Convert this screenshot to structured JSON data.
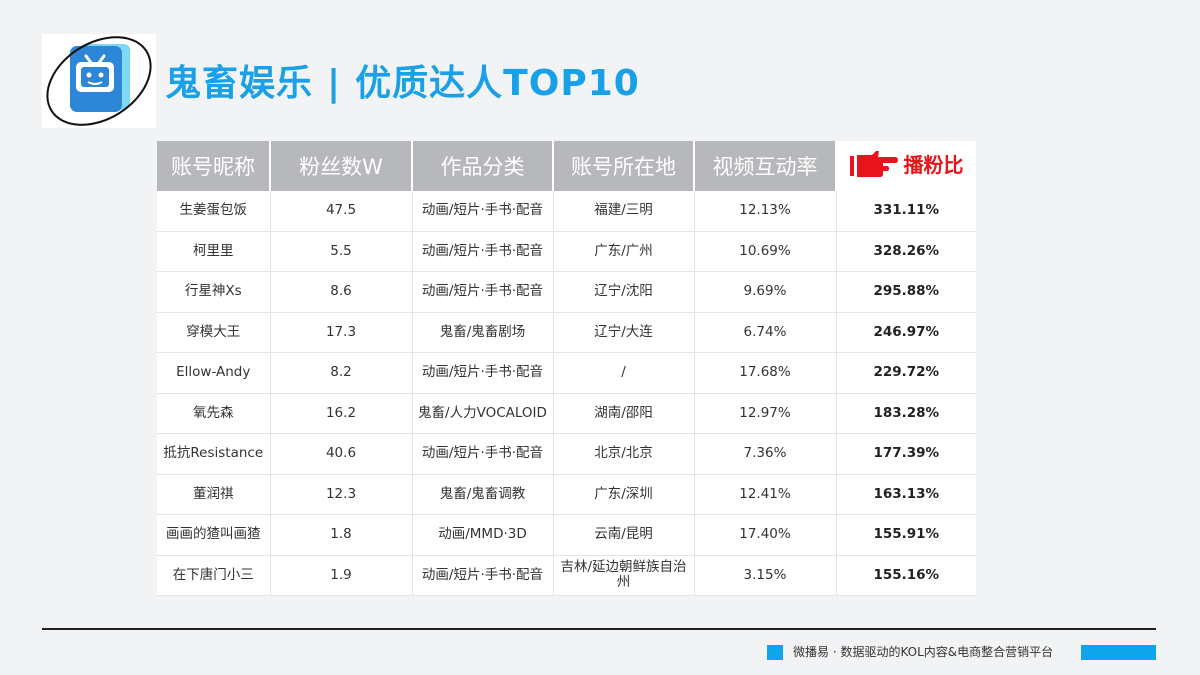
{
  "header": {
    "title_main": "鬼畜娱乐",
    "title_sep": "|",
    "title_sub": "优质达人TOP10"
  },
  "colors": {
    "accent": "#1aa0e6",
    "header_gray": "#b7b8bb",
    "highlight_red": "#e8141b"
  },
  "table": {
    "columns": [
      "账号昵称",
      "粉丝数W",
      "作品分类",
      "账号所在地",
      "视频互动率",
      "播粉比"
    ],
    "rows": [
      [
        "生姜蛋包饭",
        "47.5",
        "动画/短片·手书·配音",
        "福建/三明",
        "12.13%",
        "331.11%"
      ],
      [
        "柯里里",
        "5.5",
        "动画/短片·手书·配音",
        "广东/广州",
        "10.69%",
        "328.26%"
      ],
      [
        "行星神Xs",
        "8.6",
        "动画/短片·手书·配音",
        "辽宁/沈阳",
        "9.69%",
        "295.88%"
      ],
      [
        "穿模大王",
        "17.3",
        "鬼畜/鬼畜剧场",
        "辽宁/大连",
        "6.74%",
        "246.97%"
      ],
      [
        "Ellow-Andy",
        "8.2",
        "动画/短片·手书·配音",
        "/",
        "17.68%",
        "229.72%"
      ],
      [
        "氧先森",
        "16.2",
        "鬼畜/人力VOCALOID",
        "湖南/邵阳",
        "12.97%",
        "183.28%"
      ],
      [
        "抵抗Resistance",
        "40.6",
        "动画/短片·手书·配音",
        "北京/北京",
        "7.36%",
        "177.39%"
      ],
      [
        "董润祺",
        "12.3",
        "鬼畜/鬼畜调教",
        "广东/深圳",
        "12.41%",
        "163.13%"
      ],
      [
        "画画的猹叫画猹",
        "1.8",
        "动画/MMD·3D",
        "云南/昆明",
        "17.40%",
        "155.91%"
      ],
      [
        "在下唐门小三",
        "1.9",
        "动画/短片·手书·配音",
        "吉林/延边朝鲜族自治州",
        "3.15%",
        "155.16%"
      ]
    ]
  },
  "footer": {
    "text": "微播易 · 数据驱动的KOL内容&电商整合营销平台"
  }
}
